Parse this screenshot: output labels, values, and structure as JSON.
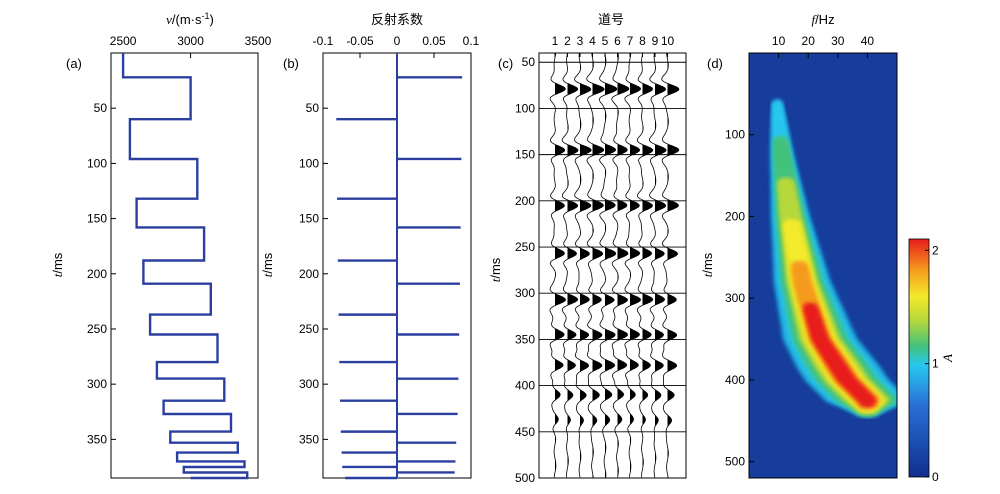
{
  "chart_data": [
    {
      "panel_label": "(a)",
      "type": "line",
      "title": "v/(m·s⁻¹)",
      "title_italic_symbol": "v",
      "title_rest": "/(m·s",
      "title_sup": "-1",
      "title_close": ")",
      "ylabel_italic": "t",
      "ylabel_rest": "/ms",
      "xlim": [
        2410,
        3500
      ],
      "ylim": [
        0,
        385
      ],
      "x_ticks": [
        2500,
        3000,
        3500
      ],
      "y_ticks": [
        50,
        100,
        150,
        200,
        250,
        300,
        350
      ],
      "series": [
        {
          "points": [
            [
              2500,
              0
            ],
            [
              2500,
              22
            ],
            [
              3000,
              22
            ],
            [
              3000,
              60
            ],
            [
              2550,
              60
            ],
            [
              2550,
              96
            ],
            [
              3050,
              96
            ],
            [
              3050,
              132
            ],
            [
              2600,
              132
            ],
            [
              2600,
              158
            ],
            [
              3100,
              158
            ],
            [
              3100,
              188
            ],
            [
              2650,
              188
            ],
            [
              2650,
              209
            ],
            [
              3150,
              209
            ],
            [
              3150,
              237
            ],
            [
              2700,
              237
            ],
            [
              2700,
              255
            ],
            [
              3200,
              255
            ],
            [
              3200,
              280
            ],
            [
              2750,
              280
            ],
            [
              2750,
              295
            ],
            [
              3250,
              295
            ],
            [
              3250,
              315
            ],
            [
              2800,
              315
            ],
            [
              2800,
              327
            ],
            [
              3300,
              327
            ],
            [
              3300,
              343
            ],
            [
              2850,
              343
            ],
            [
              2850,
              353
            ],
            [
              3350,
              353
            ],
            [
              3350,
              362
            ],
            [
              2900,
              362
            ],
            [
              2900,
              370
            ],
            [
              3400,
              370
            ],
            [
              3400,
              375
            ],
            [
              2950,
              375
            ],
            [
              2950,
              380
            ],
            [
              3420,
              380
            ],
            [
              3420,
              385
            ],
            [
              3000,
              385
            ]
          ]
        }
      ]
    },
    {
      "panel_label": "(b)",
      "type": "bar",
      "title": "反射系数",
      "ylabel_italic": "t",
      "ylabel_rest": "/ms",
      "xlim": [
        -0.1,
        0.1
      ],
      "ylim": [
        0,
        385
      ],
      "x_ticks": [
        -0.1,
        -0.05,
        0,
        0.05,
        0.1
      ],
      "x_tick_labels": [
        "-0.1",
        "-0.05",
        "0",
        "0.05",
        "0.1"
      ],
      "y_ticks": [
        50,
        100,
        150,
        200,
        250,
        300,
        350
      ],
      "spikes": [
        {
          "t": 22,
          "r": 0.088
        },
        {
          "t": 60,
          "r": -0.082
        },
        {
          "t": 96,
          "r": 0.087
        },
        {
          "t": 132,
          "r": -0.081
        },
        {
          "t": 158,
          "r": 0.086
        },
        {
          "t": 188,
          "r": -0.08
        },
        {
          "t": 209,
          "r": 0.085
        },
        {
          "t": 237,
          "r": -0.079
        },
        {
          "t": 255,
          "r": 0.084
        },
        {
          "t": 280,
          "r": -0.078
        },
        {
          "t": 295,
          "r": 0.083
        },
        {
          "t": 315,
          "r": -0.077
        },
        {
          "t": 327,
          "r": 0.082
        },
        {
          "t": 343,
          "r": -0.076
        },
        {
          "t": 353,
          "r": 0.08
        },
        {
          "t": 362,
          "r": -0.075
        },
        {
          "t": 370,
          "r": 0.079
        },
        {
          "t": 375,
          "r": -0.074
        },
        {
          "t": 380,
          "r": 0.078
        },
        {
          "t": 385,
          "r": -0.07
        }
      ]
    },
    {
      "panel_label": "(c)",
      "type": "line",
      "title": "道号",
      "ylabel_italic": "t",
      "ylabel_rest": "/ms",
      "trace_labels": [
        "1",
        "2",
        "3",
        "4",
        "5",
        "6",
        "7",
        "8",
        "9",
        "10"
      ],
      "ylim": [
        40,
        500
      ],
      "y_ticks": [
        50,
        100,
        150,
        200,
        250,
        300,
        350,
        400,
        450,
        500
      ],
      "event_times_ms": [
        79,
        145,
        205,
        257,
        307,
        345,
        378,
        410,
        437
      ],
      "event_amplitudes": [
        1.0,
        0.95,
        0.92,
        0.9,
        0.88,
        0.85,
        0.8,
        0.55,
        0.35
      ]
    },
    {
      "panel_label": "(d)",
      "type": "heatmap",
      "title_italic": "f",
      "title_rest": "/Hz",
      "ylabel_italic": "t",
      "ylabel_rest": "/ms",
      "xlim": [
        0,
        50
      ],
      "ylim": [
        0,
        520
      ],
      "x_ticks": [
        10,
        20,
        30,
        40
      ],
      "y_ticks": [
        100,
        200,
        300,
        400,
        500
      ],
      "colorbar": {
        "label": "A",
        "range": [
          0,
          2.1
        ],
        "ticks": [
          0,
          1,
          2
        ],
        "colors": [
          "#0f2f8f",
          "#2a6fd6",
          "#27c7ef",
          "#43c27a",
          "#b7d83a",
          "#f3ea2a",
          "#f59a1e",
          "#e81c1c"
        ]
      },
      "ridge": [
        {
          "t": 60,
          "f": 9.5
        },
        {
          "t": 120,
          "f": 11
        },
        {
          "t": 200,
          "f": 14
        },
        {
          "t": 280,
          "f": 18
        },
        {
          "t": 350,
          "f": 24
        },
        {
          "t": 400,
          "f": 33
        },
        {
          "t": 425,
          "f": 40
        }
      ]
    }
  ]
}
